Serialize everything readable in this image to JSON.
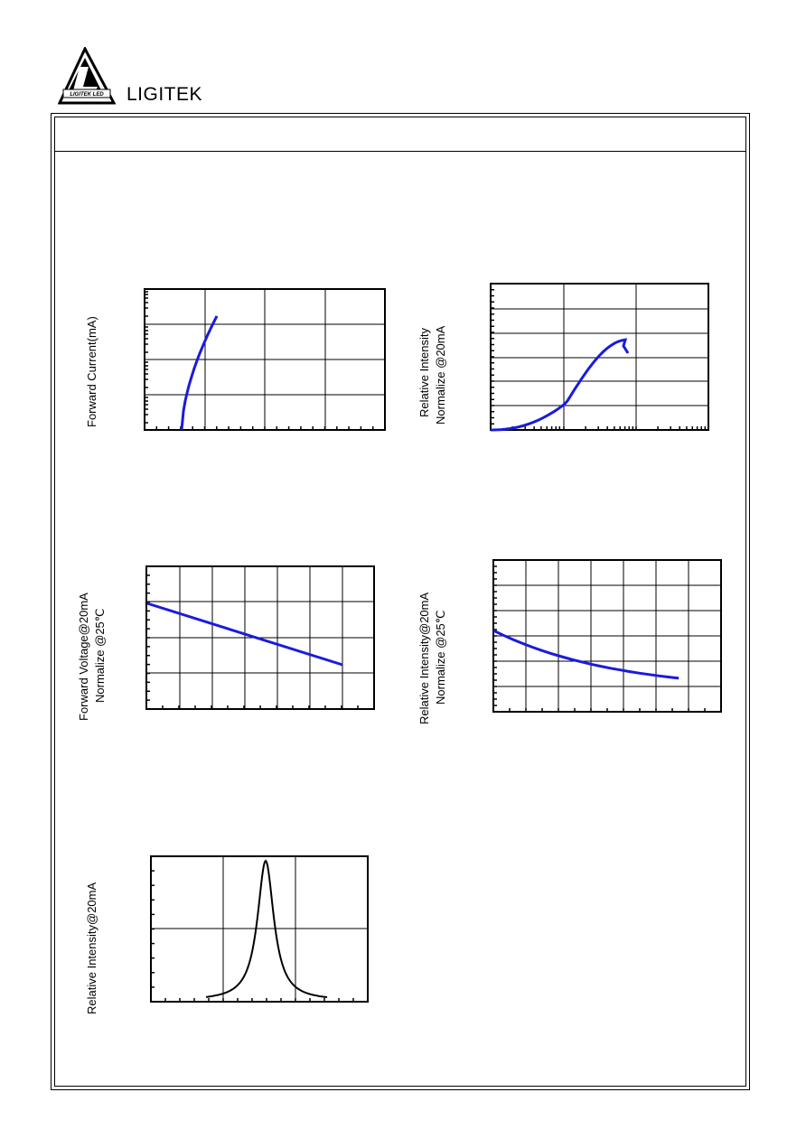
{
  "header": {
    "brand": "LIGITEK",
    "logo_text": "LIGITEK LED"
  },
  "colors": {
    "curve_blue": "#1a1ae0",
    "curve_black": "#000000",
    "grid": "#000000"
  },
  "charts": [
    {
      "id": "forward-current",
      "ylabel_lines": [
        "Forward Current(mA)"
      ],
      "curve_color": "blue"
    },
    {
      "id": "relative-intensity-vs-current",
      "ylabel_lines": [
        "Relative Intensity",
        "Normalize @20mA"
      ],
      "curve_color": "blue"
    },
    {
      "id": "forward-voltage-vs-temperature",
      "ylabel_lines": [
        "Forward Voltage@20mA",
        "Normalize @25℃"
      ],
      "curve_color": "blue"
    },
    {
      "id": "relative-intensity-vs-temperature",
      "ylabel_lines": [
        "Relative Intensity@20mA",
        "Normalize @25℃"
      ],
      "curve_color": "blue"
    },
    {
      "id": "spectrum",
      "ylabel_lines": [
        "Relative Intensity@20mA"
      ],
      "curve_color": "black"
    }
  ]
}
